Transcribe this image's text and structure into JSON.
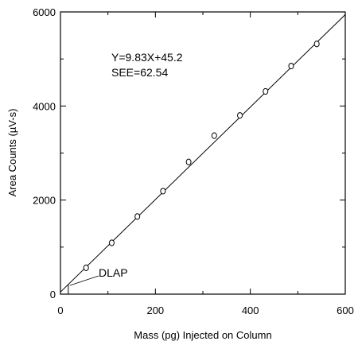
{
  "chart_data": {
    "type": "scatter",
    "title": "",
    "xlabel": "Mass (pg) Injected on Column",
    "ylabel": "Area Counts (µV-s)",
    "xlim": [
      0,
      600
    ],
    "ylim": [
      0,
      6000
    ],
    "x_ticks": [
      0,
      200,
      400,
      600
    ],
    "y_ticks": [
      0,
      2000,
      4000,
      6000
    ],
    "x_tick_labels": [
      "0",
      "200",
      "400",
      "600"
    ],
    "y_tick_labels": [
      "0",
      "2000",
      "4000",
      "6000"
    ],
    "grid": false,
    "legend": "none",
    "series": [
      {
        "marker": "open-circle",
        "x": [
          54,
          108,
          162,
          216,
          270,
          324,
          378,
          432,
          486,
          540
        ],
        "y": [
          560,
          1090,
          1650,
          2190,
          2810,
          3370,
          3800,
          4310,
          4850,
          5320
        ]
      }
    ],
    "fit_line": {
      "slope": 9.83,
      "intercept": 45.2,
      "x_range": [
        0,
        600
      ]
    },
    "annotations": {
      "equation": "Y=9.83X+45.2",
      "see": "SEE=62.54",
      "dlap_label": "DLAP",
      "dlap_x": 16.5
    }
  }
}
